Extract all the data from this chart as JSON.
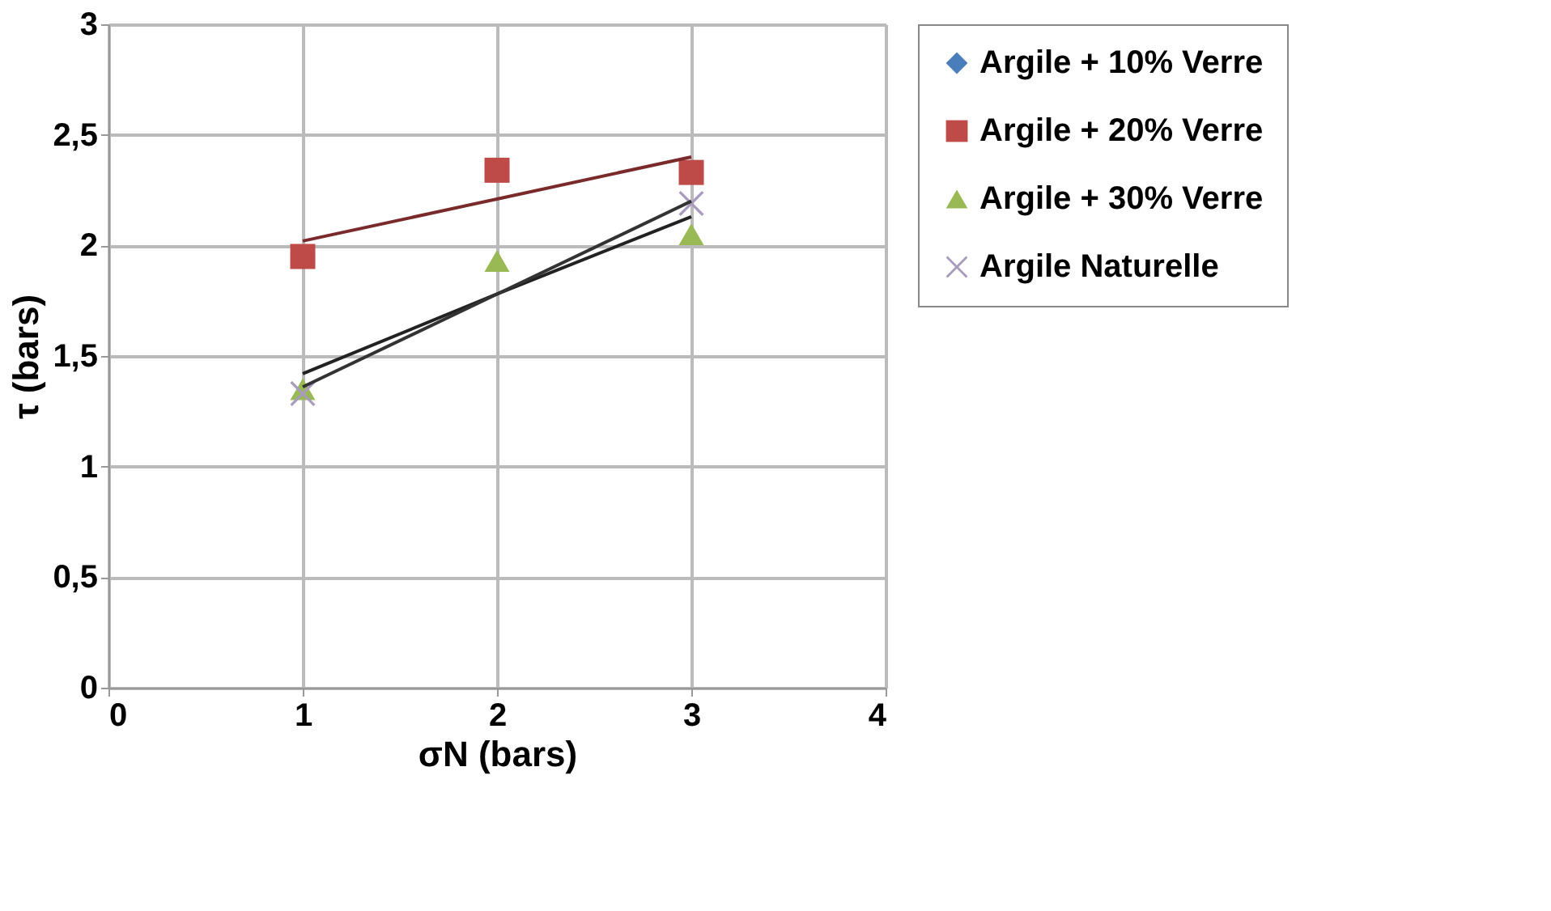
{
  "chart_data": {
    "type": "scatter",
    "xlabel": "σN (bars)",
    "ylabel": "τ (bars)",
    "xlim": [
      0,
      4
    ],
    "xticks": [
      0,
      1,
      2,
      3,
      4
    ],
    "ylim": [
      0,
      3
    ],
    "yticks": [
      0,
      {
        "value": 0.5,
        "label": "0,5"
      },
      1,
      {
        "value": 1.5,
        "label": "1,5"
      },
      2,
      {
        "value": 2.5,
        "label": "2,5"
      },
      3
    ],
    "x": [
      1,
      2,
      3
    ],
    "grid": true,
    "legend": "top right",
    "series": [
      {
        "name": "Argile + 10% Verre",
        "color": "#4a7ebb",
        "marker": "diamond",
        "values": [
          null,
          null,
          null
        ]
      },
      {
        "name": "Argile + 20% Verre",
        "color": "#be4b48",
        "marker": "square",
        "values": [
          1.95,
          2.34,
          2.33
        ]
      },
      {
        "name": "Argile + 30% Verre",
        "color": "#98b954",
        "marker": "triangle",
        "values": [
          1.35,
          1.93,
          2.05
        ]
      },
      {
        "name": "Argile Naturelle",
        "color": "#a99bbd",
        "marker": "cross",
        "values": [
          1.33,
          null,
          2.19
        ]
      },
      {
        "type": "line",
        "color": "#7a2a2a",
        "values": [
          2.02,
          2.21,
          2.4
        ]
      },
      {
        "type": "line",
        "color": "#222222",
        "values": [
          1.42,
          1.78,
          2.13
        ]
      },
      {
        "type": "line",
        "color": "#333333",
        "values": [
          1.36,
          1.78,
          2.2
        ]
      }
    ]
  }
}
